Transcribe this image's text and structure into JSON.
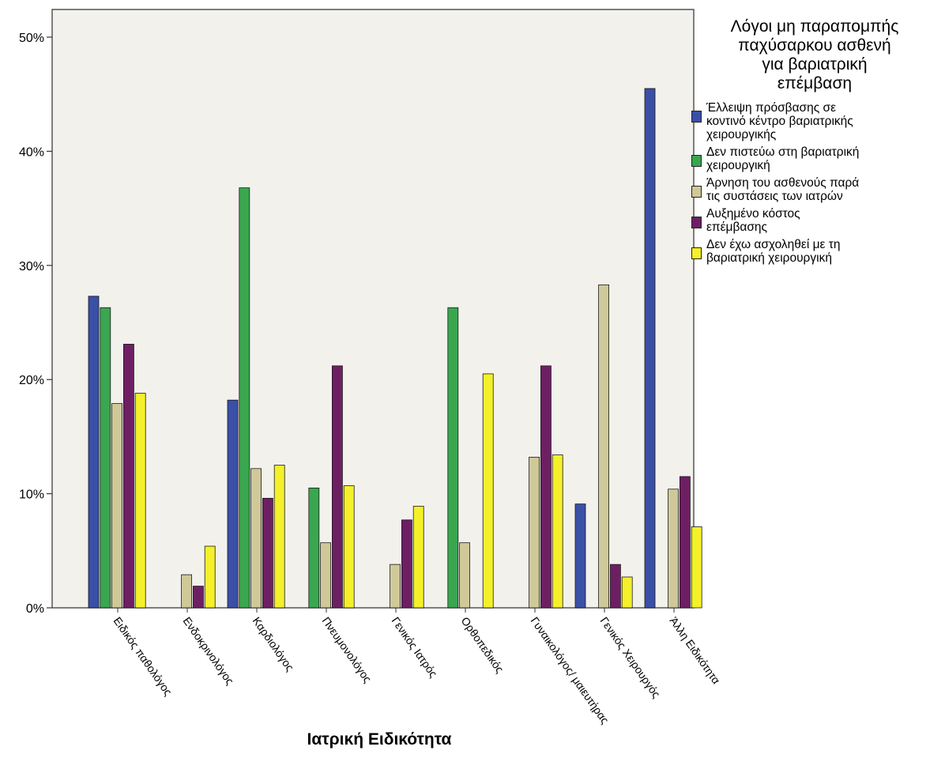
{
  "chart_data": {
    "type": "bar",
    "title": "",
    "xlabel": "Ιατρική Ειδικότητα",
    "ylabel": "",
    "ylim": [
      0,
      50
    ],
    "yticks": [
      "0%",
      "10%",
      "20%",
      "30%",
      "40%",
      "50%"
    ],
    "ytick_values": [
      0,
      10,
      20,
      30,
      40,
      50
    ],
    "grid": false,
    "legend_position": "right",
    "legend_title": "Λόγοι μη παραπομπής παχύσαρκου ασθενή για βαριατρική επέμβαση",
    "legend_title_lines": [
      "Λόγοι μη παραπομπής",
      "παχύσαρκου ασθενή",
      "για βαριατρική",
      "επέμβαση"
    ],
    "categories": [
      "Ειδικός παθολόγος",
      "Ενδοκρινολόγος",
      "Καρδιολόγος",
      "Πνευμονολόγος",
      "Γενικός Ιατρός",
      "Ορθοπεδικός",
      "Γυναικολόγος/ μαιευτήρας",
      "Γενικός Χειρουργός",
      "Άλλη Ειδικότητα"
    ],
    "series": [
      {
        "name": "Έλλειψη πρόσβασης σε κοντινό κέντρο βαριατρικής χειρουργικής",
        "legend_lines": [
          "Έλλειψη πρόσβασης σε",
          "κοντινό κέντρο βαριατρικής",
          "χειρουργικής"
        ],
        "color": "#3a4fa6",
        "values": [
          27.3,
          0,
          18.2,
          0,
          0,
          0,
          0,
          9.1,
          45.5
        ]
      },
      {
        "name": "Δεν πιστεύω στη βαριατρική χειρουργική",
        "legend_lines": [
          "Δεν πιστεύω στη βαριατρική",
          "χειρουργική"
        ],
        "color": "#3aa64f",
        "values": [
          26.3,
          0,
          36.8,
          10.5,
          0,
          26.3,
          0,
          0,
          0
        ]
      },
      {
        "name": "Άρνηση του ασθενούς παρά τις συστάσεις των ιατρών",
        "legend_lines": [
          "Άρνηση του ασθενούς παρά",
          "τις συστάσεις των ιατρών"
        ],
        "color": "#cfc99a",
        "values": [
          17.9,
          2.9,
          12.2,
          5.7,
          3.8,
          5.7,
          13.2,
          28.3,
          10.4
        ]
      },
      {
        "name": "Αυξημένο κόστος επέμβασης",
        "legend_lines": [
          "Αυξημένο κόστος",
          "επέμβασης"
        ],
        "color": "#6e1f63",
        "values": [
          23.1,
          1.9,
          9.6,
          21.2,
          7.7,
          0,
          21.2,
          3.8,
          11.5
        ]
      },
      {
        "name": "Δεν έχω ασχοληθεί με τη βαριατρική χειρουργική",
        "legend_lines": [
          "Δεν έχω ασχοληθεί με τη",
          "βαριατρική χειρουργική"
        ],
        "color": "#f4f02a",
        "values": [
          18.8,
          5.4,
          12.5,
          10.7,
          8.9,
          20.5,
          13.4,
          2.7,
          7.1
        ]
      }
    ]
  }
}
